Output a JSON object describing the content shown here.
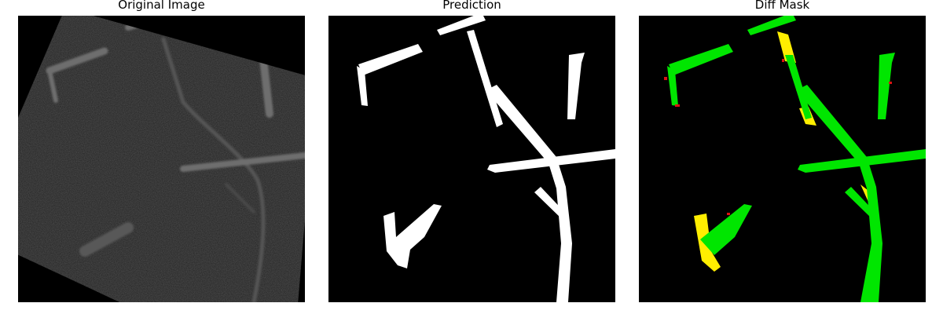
{
  "figure": {
    "panels": [
      {
        "title": "Original Image"
      },
      {
        "title": "Prediction"
      },
      {
        "title": "Diff Mask"
      }
    ]
  },
  "colors": {
    "background": "#000000",
    "raw_fiber": "#6e6e6e",
    "prediction": "#ffffff",
    "match": "#00e600",
    "missed": "#ffee00",
    "false_positive": "#dd1111"
  }
}
